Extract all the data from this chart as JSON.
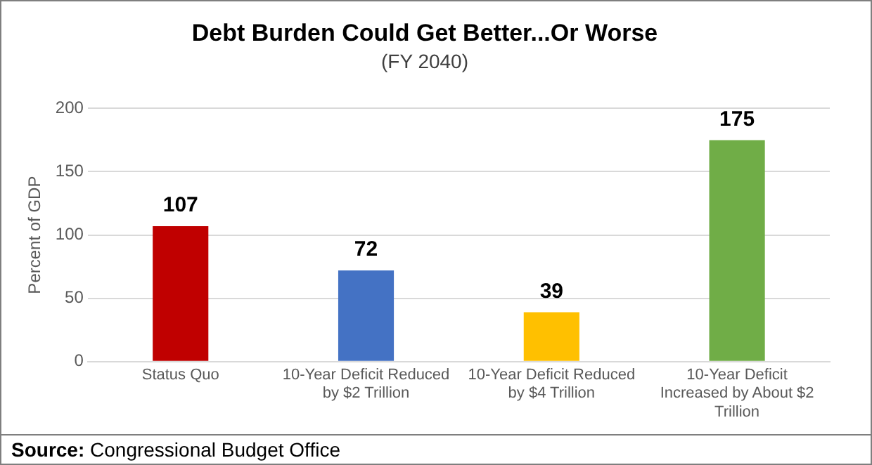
{
  "chart_data": {
    "type": "bar",
    "title": "Debt Burden Could Get Better...Or Worse",
    "subtitle": "(FY 2040)",
    "ylabel": "Percent of GDP",
    "categories": [
      "Status Quo",
      "10-Year Deficit Reduced by $2 Trillion",
      "10-Year Deficit Reduced by $4 Trillion",
      "10-Year Deficit Increased by About $2 Trillion"
    ],
    "values": [
      107,
      72,
      39,
      175
    ],
    "colors": [
      "#c00000",
      "#4472c4",
      "#ffc000",
      "#70ad47"
    ],
    "ylim": [
      0,
      200
    ],
    "yticks": [
      0,
      50,
      100,
      150,
      200
    ],
    "grid": "y",
    "legend": false,
    "data_labels": true,
    "annotations": [
      "Source: Congressional Budget Office"
    ]
  }
}
